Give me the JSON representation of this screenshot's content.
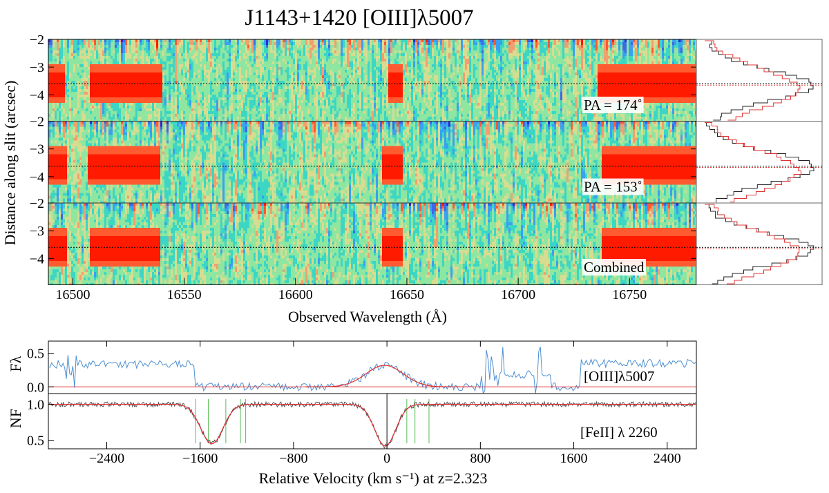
{
  "title": "J1143+1420 [OIII]λ5007",
  "colors": {
    "map_low": "#2a2ad8",
    "map_mid": "#3cd6c4",
    "map_high": "#ff1a00",
    "flux_line": "#4d8fd1",
    "model_line": "#e03030",
    "black_line": "#222222",
    "gray_line": "#555555",
    "green_line": "#55bb55"
  },
  "chart_data": [
    {
      "type": "heatmap",
      "name": "2D spectra",
      "xlabel": "Observed Wavelength (Å)",
      "ylabel": "Distance along slit (arcsec)",
      "xlim": [
        16489,
        16780
      ],
      "ylim_per_panel": [
        -2,
        -4.95
      ],
      "xticks": [
        16500,
        16550,
        16600,
        16650,
        16700,
        16750
      ],
      "yticks": [
        -2,
        -3,
        -4
      ],
      "panels": [
        {
          "label": "PA = 174˚",
          "trace_y": -3.6,
          "emission_bands": [
            [
              16489,
              16496
            ],
            [
              16507,
              16540
            ],
            [
              16641,
              16648
            ],
            [
              16735,
              16780
            ]
          ]
        },
        {
          "label": "PA = 153˚",
          "trace_y": -3.62,
          "emission_bands": [
            [
              16489,
              16497
            ],
            [
              16506,
              16539
            ],
            [
              16638,
              16648
            ],
            [
              16737,
              16780
            ]
          ]
        },
        {
          "label": "Combined",
          "trace_y": -3.6,
          "emission_bands": [
            [
              16489,
              16497
            ],
            [
              16507,
              16539
            ],
            [
              16638,
              16648
            ],
            [
              16737,
              16780
            ]
          ]
        }
      ]
    },
    {
      "type": "line",
      "name": "Spatial profiles",
      "series_colors": [
        "black",
        "red"
      ],
      "peak_y": [
        -3.6,
        -3.62,
        -3.6
      ]
    },
    {
      "type": "line",
      "name": "[OIII] velocity profile",
      "ylabel": "Fλ",
      "ylim": [
        -0.1,
        0.68
      ],
      "yticks": [
        0.0,
        0.5
      ],
      "label": "[OIII]λ5007",
      "gaussian_fit": {
        "center_kms": -20,
        "sigma_kms": 160,
        "amplitude": 0.32
      }
    },
    {
      "type": "line",
      "name": "[FeII] velocity profile",
      "ylabel": "NF",
      "ylim": [
        0.38,
        1.15
      ],
      "yticks": [
        0.5,
        1.0
      ],
      "label": "[FeII] λ 2260",
      "xlabel": "Relative Velocity (km s⁻¹) at z=2.323",
      "xlim": [
        -2900,
        2650
      ],
      "xticks": [
        -2400,
        -1600,
        -800,
        0,
        800,
        1600,
        2400
      ],
      "absorption_components": [
        {
          "center_kms": -1500,
          "depth": 0.55,
          "width_kms": 95
        },
        {
          "center_kms": -15,
          "depth": 0.58,
          "width_kms": 90
        }
      ],
      "green_markers_kms": [
        -1640,
        -1530,
        -1380,
        -1255,
        -1210,
        170,
        240,
        360
      ]
    }
  ]
}
